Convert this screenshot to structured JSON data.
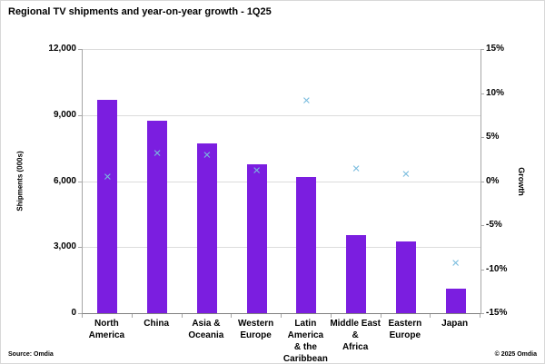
{
  "page": {
    "title": "Regional TV shipments and year-on-year growth - 1Q25",
    "source": "Source: Omdia",
    "copyright": "© 2025 Omdia"
  },
  "colors": {
    "bar_purple": "#7b1ee0",
    "marker_blue": "#79bcde",
    "gridline": "#dcdcdc",
    "axis_line": "#a6a6a6",
    "text": "#000000"
  },
  "chart_data": {
    "type": "bar",
    "title": "Regional TV shipments and year-on-year growth - 1Q25",
    "categories": [
      "North America",
      "China",
      "Asia & Oceania",
      "Western Europe",
      "Latin America & the Caribbean",
      "Middle East & Africa",
      "Eastern Europe",
      "Japan"
    ],
    "category_label_lines": [
      [
        "North",
        "America"
      ],
      [
        "China"
      ],
      [
        "Asia &",
        "Oceania"
      ],
      [
        "Western",
        "Europe"
      ],
      [
        "Latin America",
        "& the",
        "Caribbean"
      ],
      [
        "Middle East &",
        "Africa"
      ],
      [
        "Eastern",
        "Europe"
      ],
      [
        "Japan"
      ]
    ],
    "series": [
      {
        "name": "Shipments",
        "type": "bar",
        "axis": "left",
        "color": "#7b1ee0",
        "values": [
          9700,
          8750,
          7700,
          6750,
          6200,
          3550,
          3250,
          1100
        ]
      },
      {
        "name": "Growth",
        "type": "scatter-x",
        "axis": "right",
        "color": "#79bcde",
        "values_pct": [
          0.5,
          3.1,
          2.9,
          1.2,
          9.1,
          1.4,
          0.8,
          -9.3
        ]
      }
    ],
    "left_axis": {
      "label": "Shipments (000s)",
      "min": 0,
      "max": 12000,
      "tick_step": 3000,
      "tick_labels": [
        "0",
        "3,000",
        "6,000",
        "9,000",
        "12,000"
      ]
    },
    "right_axis": {
      "label": "Growth",
      "min": -15,
      "max": 15,
      "tick_step": 5,
      "tick_labels": [
        "-15%",
        "-10%",
        "-5%",
        "0%",
        "5%",
        "10%",
        "15%"
      ]
    },
    "grid": true,
    "legend": "none"
  }
}
